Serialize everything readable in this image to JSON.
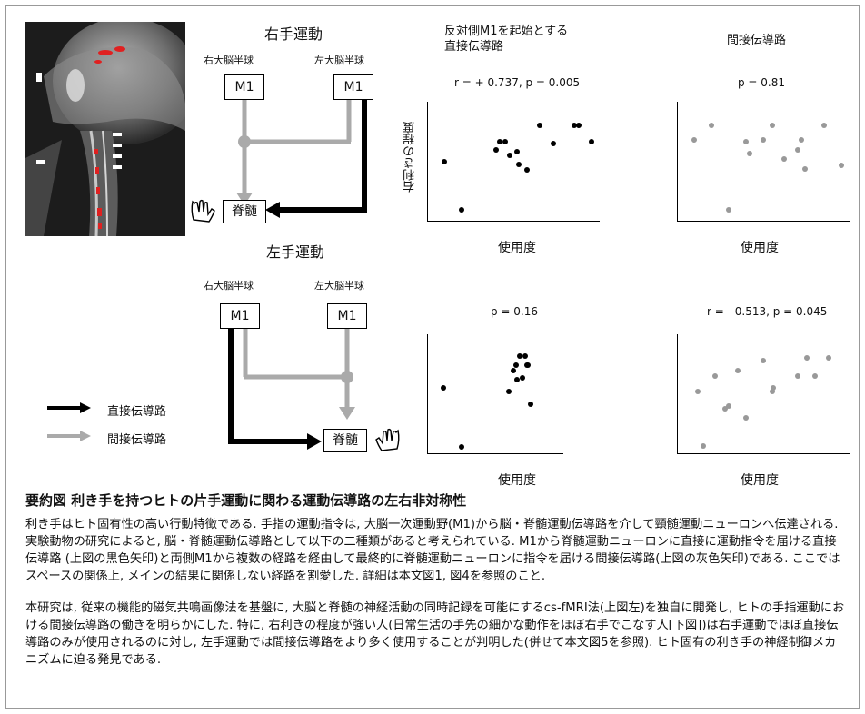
{
  "top": {
    "title": "右手運動",
    "left_label": "右大脳半球",
    "right_label": "左大脳半球",
    "m1_left": "M1",
    "m1_right": "M1",
    "target": "脊髄"
  },
  "bottom": {
    "title": "左手運動",
    "left_label": "右大脳半球",
    "right_label": "左大脳半球",
    "m1_left": "M1",
    "m1_right": "M1",
    "target": "脊髄"
  },
  "legend": {
    "direct": "直接伝導路",
    "indirect": "間接伝導路",
    "direct_color": "#000000",
    "indirect_color": "#aaaaaa"
  },
  "column_headers": {
    "direct": "反対側M1を起始とする\n直接伝導路",
    "indirect": "間接伝導路"
  },
  "chart_data": [
    {
      "type": "scatter",
      "title": "r = + 0.737, p = 0.005",
      "xlabel": "使用度",
      "ylabel": "右利きの程度",
      "color": "#000000",
      "points": [
        [
          0.1,
          0.5
        ],
        [
          0.2,
          0.1
        ],
        [
          0.4,
          0.6
        ],
        [
          0.42,
          0.67
        ],
        [
          0.45,
          0.67
        ],
        [
          0.48,
          0.55
        ],
        [
          0.52,
          0.58
        ],
        [
          0.53,
          0.48
        ],
        [
          0.58,
          0.43
        ],
        [
          0.65,
          0.8
        ],
        [
          0.73,
          0.65
        ],
        [
          0.85,
          0.8
        ],
        [
          0.88,
          0.8
        ],
        [
          0.95,
          0.67
        ]
      ]
    },
    {
      "type": "scatter",
      "title": "p = 0.81",
      "xlabel": "使用度",
      "ylabel": "",
      "color": "#999999",
      "points": [
        [
          0.1,
          0.68
        ],
        [
          0.2,
          0.8
        ],
        [
          0.3,
          0.1
        ],
        [
          0.4,
          0.67
        ],
        [
          0.42,
          0.57
        ],
        [
          0.5,
          0.68
        ],
        [
          0.55,
          0.8
        ],
        [
          0.62,
          0.52
        ],
        [
          0.7,
          0.6
        ],
        [
          0.72,
          0.68
        ],
        [
          0.74,
          0.44
        ],
        [
          0.85,
          0.8
        ],
        [
          0.95,
          0.47
        ]
      ]
    },
    {
      "type": "scatter",
      "title": "p = 0.16",
      "xlabel": "使用度",
      "ylabel": "",
      "color": "#000000",
      "points": [
        [
          0.12,
          0.55
        ],
        [
          0.25,
          0.06
        ],
        [
          0.6,
          0.52
        ],
        [
          0.63,
          0.7
        ],
        [
          0.65,
          0.74
        ],
        [
          0.66,
          0.62
        ],
        [
          0.68,
          0.82
        ],
        [
          0.7,
          0.64
        ],
        [
          0.72,
          0.82
        ],
        [
          0.73,
          0.74
        ],
        [
          0.74,
          0.74
        ],
        [
          0.76,
          0.42
        ]
      ]
    },
    {
      "type": "scatter",
      "title": "r = - 0.513, p = 0.045",
      "xlabel": "使用度",
      "ylabel": "",
      "color": "#999999",
      "points": [
        [
          0.12,
          0.52
        ],
        [
          0.15,
          0.07
        ],
        [
          0.22,
          0.65
        ],
        [
          0.28,
          0.38
        ],
        [
          0.3,
          0.4
        ],
        [
          0.35,
          0.7
        ],
        [
          0.4,
          0.3
        ],
        [
          0.5,
          0.78
        ],
        [
          0.55,
          0.52
        ],
        [
          0.56,
          0.55
        ],
        [
          0.7,
          0.65
        ],
        [
          0.75,
          0.8
        ],
        [
          0.8,
          0.65
        ],
        [
          0.88,
          0.8
        ]
      ]
    }
  ],
  "caption": {
    "title": "要約図 利き手を持つヒトの片手運動に関わる運動伝導路の左右非対称性",
    "p1": "利き手はヒト固有性の高い行動特徴である. 手指の運動指令は, 大脳一次運動野(M1)から脳・脊髄運動伝導路を介して頸髄運動ニューロンへ伝達される. 実験動物の研究によると, 脳・脊髄運動伝導路として以下の二種類があると考えられている. M1から脊髄運動ニューロンに直接に運動指令を届ける直接伝導路 (上図の黒色矢印)と両側M1から複数の経路を経由して最終的に脊髄運動ニューロンに指令を届ける間接伝導路(上図の灰色矢印)である. ここではスペースの関係上, メインの結果に関係しない経路を割愛した. 詳細は本文図1, 図4を参照のこと.",
    "p2": "本研究は, 従来の機能的磁気共鳴画像法を基盤に, 大脳と脊髄の神経活動の同時記録を可能にするcs-fMRI法(上図左)を独自に開発し, ヒトの手指運動における間接伝導路の働きを明らかにした. 特に, 右利きの程度が強い人(日常生活の手先の細かな動作をほぼ右手でこなす人[下図])は右手運動でほぼ直接伝導路のみが使用されるのに対し, 左手運動では間接伝導路をより多く使用することが判明した(併せて本文図5を参照). ヒト固有の利き手の神経制御メカニズムに迫る発見である."
  }
}
